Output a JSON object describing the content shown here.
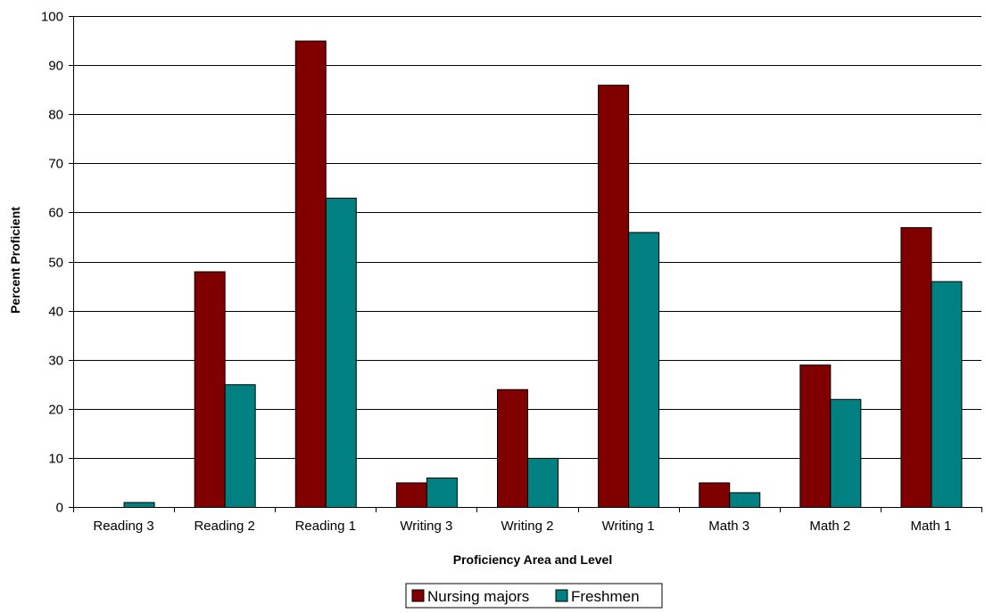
{
  "chart_data": {
    "type": "bar",
    "title": "",
    "xlabel": "Proficiency Area and Level",
    "ylabel": "Percent Proficient",
    "ylim": [
      0,
      100
    ],
    "yticks": [
      0,
      10,
      20,
      30,
      40,
      50,
      60,
      70,
      80,
      90,
      100
    ],
    "grid": true,
    "legend_position": "bottom",
    "categories": [
      "Reading 3",
      "Reading 2",
      "Reading 1",
      "Writing 3",
      "Writing 2",
      "Writing 1",
      "Math 3",
      "Math 2",
      "Math 1"
    ],
    "series": [
      {
        "name": "Nursing majors",
        "color": "#800000",
        "values": [
          0,
          48,
          95,
          5,
          24,
          86,
          5,
          29,
          57
        ]
      },
      {
        "name": "Freshmen",
        "color": "#008080",
        "values": [
          1,
          25,
          63,
          6,
          10,
          56,
          3,
          22,
          46
        ]
      }
    ]
  }
}
